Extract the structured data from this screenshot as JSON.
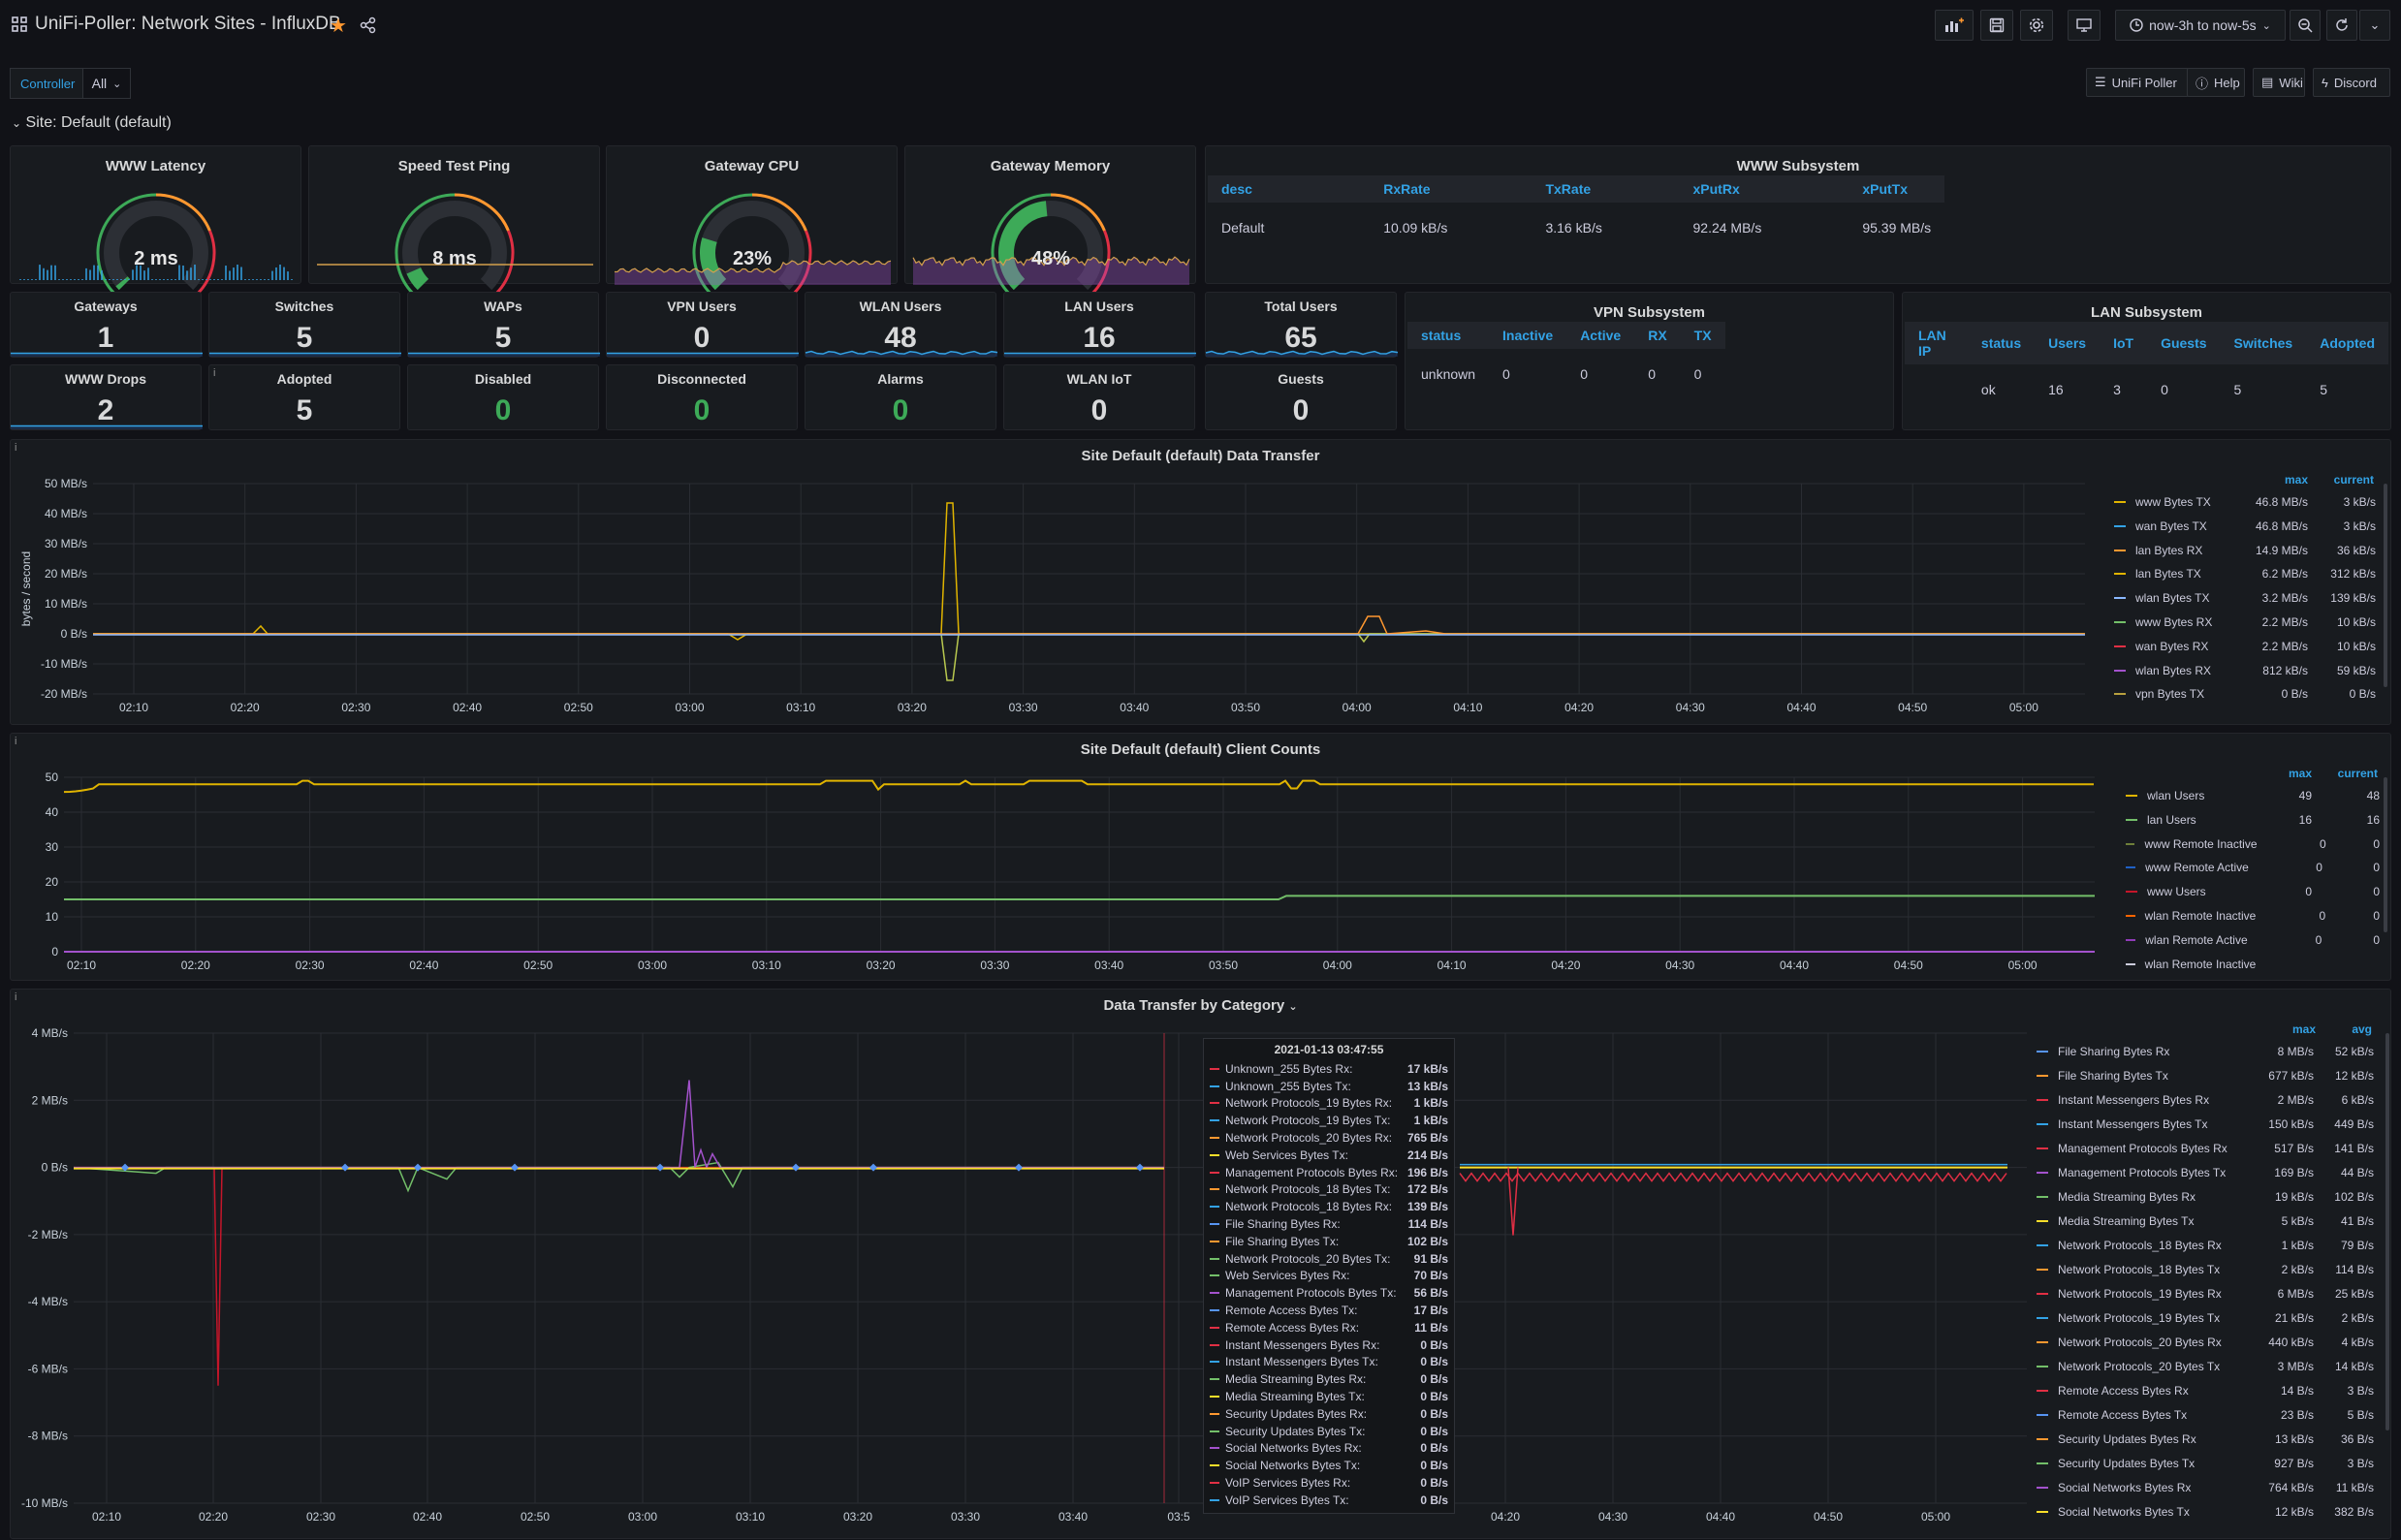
{
  "header": {
    "title": "UniFi-Poller: Network Sites - InfluxDB",
    "time_range": "now-3h to now-5s"
  },
  "variables": {
    "controller_label": "Controller",
    "controller_value": "All"
  },
  "links": [
    "UniFi Poller",
    "Help",
    "Wiki",
    "Discord"
  ],
  "row_title": "Site: Default (default)",
  "gauges": [
    {
      "title": "WWW Latency",
      "value": "2 ms",
      "percent": 0.02
    },
    {
      "title": "Speed Test Ping",
      "value": "8 ms",
      "percent": 0.08
    },
    {
      "title": "Gateway CPU",
      "value": "23%",
      "percent": 0.23
    },
    {
      "title": "Gateway Memory",
      "value": "48%",
      "percent": 0.48
    }
  ],
  "www_subsystem": {
    "title": "WWW Subsystem",
    "columns": [
      "desc",
      "RxRate",
      "TxRate",
      "xPutRx",
      "xPutTx"
    ],
    "rows": [
      [
        "Default",
        "10.09 kB/s",
        "3.16 kB/s",
        "92.24 MB/s",
        "95.39 MB/s"
      ]
    ]
  },
  "stats_row1": [
    {
      "title": "Gateways",
      "value": "1"
    },
    {
      "title": "Switches",
      "value": "5"
    },
    {
      "title": "WAPs",
      "value": "5"
    },
    {
      "title": "VPN Users",
      "value": "0"
    },
    {
      "title": "WLAN Users",
      "value": "48"
    },
    {
      "title": "LAN Users",
      "value": "16"
    },
    {
      "title": "Total Users",
      "value": "65"
    }
  ],
  "stats_row2": [
    {
      "title": "WWW Drops",
      "value": "2",
      "green": false
    },
    {
      "title": "Adopted",
      "value": "5",
      "green": false
    },
    {
      "title": "Disabled",
      "value": "0",
      "green": true
    },
    {
      "title": "Disconnected",
      "value": "0",
      "green": true
    },
    {
      "title": "Alarms",
      "value": "0",
      "green": true
    },
    {
      "title": "WLAN IoT",
      "value": "0",
      "green": false
    },
    {
      "title": "Guests",
      "value": "0",
      "green": false
    }
  ],
  "vpn_subsystem": {
    "title": "VPN Subsystem",
    "columns": [
      "status",
      "Inactive",
      "Active",
      "RX",
      "TX"
    ],
    "rows": [
      [
        "unknown",
        "0",
        "0",
        "0",
        "0"
      ]
    ]
  },
  "lan_subsystem": {
    "title": "LAN Subsystem",
    "columns": [
      "LAN IP",
      "status",
      "Users",
      "IoT",
      "Guests",
      "Switches",
      "Adopted"
    ],
    "rows": [
      [
        "",
        "ok",
        "16",
        "3",
        "0",
        "5",
        "5"
      ]
    ]
  },
  "colors": {
    "green": "#3daa58",
    "yellow": "#e0b400",
    "orange": "#ff9830",
    "red": "#e02f44",
    "blue": "#33a2e5",
    "purple": "#a352cc"
  },
  "chart_data": [
    {
      "type": "line",
      "title": "Site Default (default) Data Transfer",
      "ylabel": "bytes / second",
      "y_ticks": [
        "50 MB/s",
        "40 MB/s",
        "30 MB/s",
        "20 MB/s",
        "10 MB/s",
        "0 B/s",
        "-10 MB/s",
        "-20 MB/s"
      ],
      "ylim": [
        -20,
        50
      ],
      "x_ticks": [
        "02:10",
        "02:20",
        "02:30",
        "02:40",
        "02:50",
        "03:00",
        "03:10",
        "03:20",
        "03:30",
        "03:40",
        "03:50",
        "04:00",
        "04:10",
        "04:20",
        "04:30",
        "04:40",
        "04:50",
        "05:00"
      ],
      "legend_headers": [
        "max",
        "current"
      ],
      "series": [
        {
          "name": "www Bytes TX",
          "max": "46.8 MB/s",
          "current": "3 kB/s",
          "color": "#e0b400"
        },
        {
          "name": "wan Bytes TX",
          "max": "46.8 MB/s",
          "current": "3 kB/s",
          "color": "#33a2e5"
        },
        {
          "name": "lan Bytes RX",
          "max": "14.9 MB/s",
          "current": "36 kB/s",
          "color": "#ff9830"
        },
        {
          "name": "lan Bytes TX",
          "max": "6.2 MB/s",
          "current": "312 kB/s",
          "color": "#e0b400"
        },
        {
          "name": "wlan Bytes TX",
          "max": "3.2 MB/s",
          "current": "139 kB/s",
          "color": "#8ab8ff"
        },
        {
          "name": "www Bytes RX",
          "max": "2.2 MB/s",
          "current": "10 kB/s",
          "color": "#73bf69"
        },
        {
          "name": "wan Bytes RX",
          "max": "2.2 MB/s",
          "current": "10 kB/s",
          "color": "#e02f44"
        },
        {
          "name": "wlan Bytes RX",
          "max": "812 kB/s",
          "current": "59 kB/s",
          "color": "#a352cc"
        },
        {
          "name": "vpn Bytes TX",
          "max": "0 B/s",
          "current": "0 B/s",
          "color": "#b8a03f"
        }
      ]
    },
    {
      "type": "line",
      "title": "Site Default (default) Client Counts",
      "y_ticks": [
        "50",
        "40",
        "30",
        "20",
        "10",
        "0"
      ],
      "ylim": [
        0,
        50
      ],
      "x_ticks": [
        "02:10",
        "02:20",
        "02:30",
        "02:40",
        "02:50",
        "03:00",
        "03:10",
        "03:20",
        "03:30",
        "03:40",
        "03:50",
        "04:00",
        "04:10",
        "04:20",
        "04:30",
        "04:40",
        "04:50",
        "05:00"
      ],
      "legend_headers": [
        "max",
        "current"
      ],
      "series": [
        {
          "name": "wlan Users",
          "max": "49",
          "current": "48",
          "color": "#e0b400"
        },
        {
          "name": "lan Users",
          "max": "16",
          "current": "16",
          "color": "#73bf69"
        },
        {
          "name": "www Remote Inactive",
          "max": "0",
          "current": "0",
          "color": "#6e7f3a"
        },
        {
          "name": "www Remote Active",
          "max": "0",
          "current": "0",
          "color": "#1f60c4"
        },
        {
          "name": "www Users",
          "max": "0",
          "current": "0",
          "color": "#c4162a"
        },
        {
          "name": "wlan Remote Inactive",
          "max": "0",
          "current": "0",
          "color": "#fa6400"
        },
        {
          "name": "wlan Remote Active",
          "max": "0",
          "current": "0",
          "color": "#8f3bb8"
        },
        {
          "name": "wlan Remote Inactive",
          "max": "",
          "current": "",
          "color": "#ccccdc"
        }
      ]
    },
    {
      "type": "line",
      "title": "Data Transfer by Category",
      "y_ticks": [
        "4 MB/s",
        "2 MB/s",
        "0 B/s",
        "-2 MB/s",
        "-4 MB/s",
        "-6 MB/s",
        "-8 MB/s",
        "-10 MB/s"
      ],
      "ylim": [
        -10,
        4
      ],
      "x_ticks": [
        "02:10",
        "02:20",
        "02:30",
        "02:40",
        "02:50",
        "03:00",
        "03:10",
        "03:20",
        "03:30",
        "03:40",
        "03:5",
        "04:20",
        "04:30",
        "04:40",
        "04:50",
        "05:00"
      ],
      "legend_headers": [
        "max",
        "avg"
      ],
      "series": [
        {
          "name": "File Sharing Bytes Rx",
          "max": "8 MB/s",
          "avg": "52 kB/s",
          "color": "#5794f2"
        },
        {
          "name": "File Sharing Bytes Tx",
          "max": "677 kB/s",
          "avg": "12 kB/s",
          "color": "#ff9830"
        },
        {
          "name": "Instant Messengers Bytes Rx",
          "max": "2 MB/s",
          "avg": "6 kB/s",
          "color": "#e02f44"
        },
        {
          "name": "Instant Messengers Bytes Tx",
          "max": "150 kB/s",
          "avg": "449 B/s",
          "color": "#33a2e5"
        },
        {
          "name": "Management Protocols Bytes Rx",
          "max": "517 B/s",
          "avg": "141 B/s",
          "color": "#e02f44"
        },
        {
          "name": "Management Protocols Bytes Tx",
          "max": "169 B/s",
          "avg": "44 B/s",
          "color": "#a352cc"
        },
        {
          "name": "Media Streaming Bytes Rx",
          "max": "19 kB/s",
          "avg": "102 B/s",
          "color": "#73bf69"
        },
        {
          "name": "Media Streaming Bytes Tx",
          "max": "5 kB/s",
          "avg": "41 B/s",
          "color": "#fade2a"
        },
        {
          "name": "Network Protocols_18 Bytes Rx",
          "max": "1 kB/s",
          "avg": "79 B/s",
          "color": "#33a2e5"
        },
        {
          "name": "Network Protocols_18 Bytes Tx",
          "max": "2 kB/s",
          "avg": "114 B/s",
          "color": "#ff9830"
        },
        {
          "name": "Network Protocols_19 Bytes Rx",
          "max": "6 MB/s",
          "avg": "25 kB/s",
          "color": "#e02f44"
        },
        {
          "name": "Network Protocols_19 Bytes Tx",
          "max": "21 kB/s",
          "avg": "2 kB/s",
          "color": "#33a2e5"
        },
        {
          "name": "Network Protocols_20 Bytes Rx",
          "max": "440 kB/s",
          "avg": "4 kB/s",
          "color": "#ff9830"
        },
        {
          "name": "Network Protocols_20 Bytes Tx",
          "max": "3 MB/s",
          "avg": "14 kB/s",
          "color": "#73bf69"
        },
        {
          "name": "Remote Access Bytes Rx",
          "max": "14 B/s",
          "avg": "3 B/s",
          "color": "#e02f44"
        },
        {
          "name": "Remote Access Bytes Tx",
          "max": "23 B/s",
          "avg": "5 B/s",
          "color": "#5794f2"
        },
        {
          "name": "Security Updates Bytes Rx",
          "max": "13 kB/s",
          "avg": "36 B/s",
          "color": "#ff9830"
        },
        {
          "name": "Security Updates Bytes Tx",
          "max": "927 B/s",
          "avg": "3 B/s",
          "color": "#73bf69"
        },
        {
          "name": "Social Networks Bytes Rx",
          "max": "764 kB/s",
          "avg": "11 kB/s",
          "color": "#a352cc"
        },
        {
          "name": "Social Networks Bytes Tx",
          "max": "12 kB/s",
          "avg": "382 B/s",
          "color": "#fade2a"
        }
      ]
    }
  ],
  "tooltip": {
    "time": "2021-01-13 03:47:55",
    "rows": [
      {
        "name": "Unknown_255 Bytes Rx:",
        "value": "17 kB/s",
        "color": "#e02f44"
      },
      {
        "name": "Unknown_255 Bytes Tx:",
        "value": "13 kB/s",
        "color": "#33a2e5"
      },
      {
        "name": "Network Protocols_19 Bytes Rx:",
        "value": "1 kB/s",
        "color": "#e02f44"
      },
      {
        "name": "Network Protocols_19 Bytes Tx:",
        "value": "1 kB/s",
        "color": "#33a2e5"
      },
      {
        "name": "Network Protocols_20 Bytes Rx:",
        "value": "765 B/s",
        "color": "#ff9830"
      },
      {
        "name": "Web Services Bytes Tx:",
        "value": "214 B/s",
        "color": "#fade2a"
      },
      {
        "name": "Management Protocols Bytes Rx:",
        "value": "196 B/s",
        "color": "#e02f44"
      },
      {
        "name": "Network Protocols_18 Bytes Tx:",
        "value": "172 B/s",
        "color": "#ff9830"
      },
      {
        "name": "Network Protocols_18 Bytes Rx:",
        "value": "139 B/s",
        "color": "#33a2e5"
      },
      {
        "name": "File Sharing Bytes Rx:",
        "value": "114 B/s",
        "color": "#5794f2"
      },
      {
        "name": "File Sharing Bytes Tx:",
        "value": "102 B/s",
        "color": "#ff9830"
      },
      {
        "name": "Network Protocols_20 Bytes Tx:",
        "value": "91 B/s",
        "color": "#73bf69"
      },
      {
        "name": "Web Services Bytes Rx:",
        "value": "70 B/s",
        "color": "#73bf69"
      },
      {
        "name": "Management Protocols Bytes Tx:",
        "value": "56 B/s",
        "color": "#a352cc"
      },
      {
        "name": "Remote Access Bytes Tx:",
        "value": "17 B/s",
        "color": "#5794f2"
      },
      {
        "name": "Remote Access Bytes Rx:",
        "value": "11 B/s",
        "color": "#e02f44"
      },
      {
        "name": "Instant Messengers Bytes Rx:",
        "value": "0 B/s",
        "color": "#e02f44"
      },
      {
        "name": "Instant Messengers Bytes Tx:",
        "value": "0 B/s",
        "color": "#33a2e5"
      },
      {
        "name": "Media Streaming Bytes Rx:",
        "value": "0 B/s",
        "color": "#73bf69"
      },
      {
        "name": "Media Streaming Bytes Tx:",
        "value": "0 B/s",
        "color": "#fade2a"
      },
      {
        "name": "Security Updates Bytes Rx:",
        "value": "0 B/s",
        "color": "#ff9830"
      },
      {
        "name": "Security Updates Bytes Tx:",
        "value": "0 B/s",
        "color": "#73bf69"
      },
      {
        "name": "Social Networks Bytes Rx:",
        "value": "0 B/s",
        "color": "#a352cc"
      },
      {
        "name": "Social Networks Bytes Tx:",
        "value": "0 B/s",
        "color": "#fade2a"
      },
      {
        "name": "VoIP Services Bytes Rx:",
        "value": "0 B/s",
        "color": "#e02f44"
      },
      {
        "name": "VoIP Services Bytes Tx:",
        "value": "0 B/s",
        "color": "#33a2e5"
      }
    ]
  }
}
